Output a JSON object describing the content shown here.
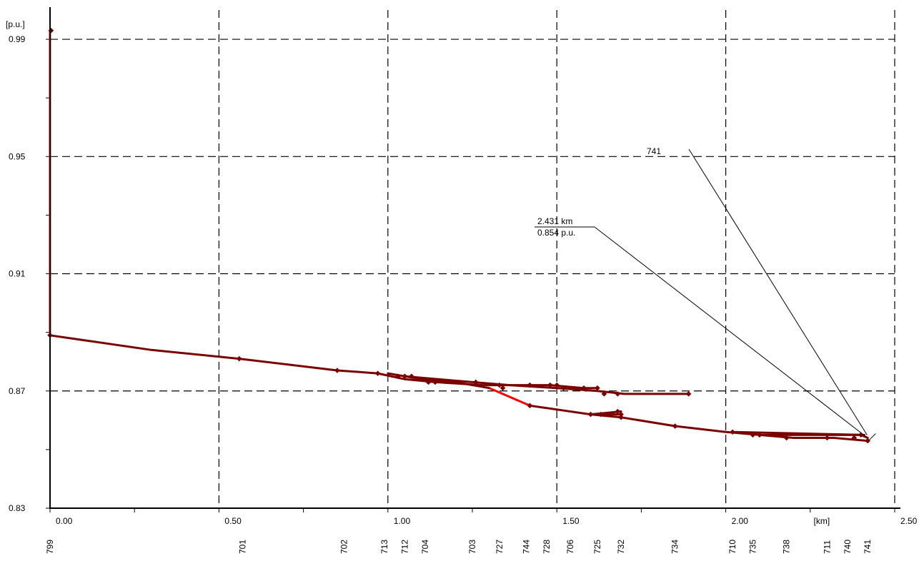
{
  "chart_data": {
    "type": "line",
    "y_unit_label": "[p.u.]",
    "x_unit_label": "[km]",
    "xlim": [
      0,
      2.5
    ],
    "ylim": [
      0.83,
      1.0
    ],
    "x_ticks": [
      "0.00",
      "0.50",
      "1.00",
      "1.50",
      "2.00",
      "2.50"
    ],
    "x_tick_values": [
      0,
      0.5,
      1.0,
      1.5,
      2.0,
      2.5
    ],
    "y_ticks": [
      "0.83",
      "0.87",
      "0.91",
      "0.95",
      "0.99"
    ],
    "y_tick_values": [
      0.83,
      0.87,
      0.91,
      0.95,
      0.99
    ],
    "grid": true,
    "colors": {
      "main": "#7a0000",
      "highlight": "#ff0000",
      "axis": "#000000"
    },
    "series": [
      {
        "color": "#ff0000",
        "points": [
          [
            0,
            0.993
          ],
          [
            0,
            0.889
          ]
        ]
      },
      {
        "color": "#ff0000",
        "points": [
          [
            1.3,
            0.871
          ],
          [
            1.42,
            0.865
          ]
        ]
      },
      {
        "color": "#7a0000",
        "points": [
          [
            0,
            0.889
          ],
          [
            0.3,
            0.884
          ],
          [
            0.56,
            0.881
          ],
          [
            0.85,
            0.877
          ],
          [
            0.97,
            0.876
          ],
          [
            1.05,
            0.874
          ],
          [
            1.14,
            0.873
          ],
          [
            1.28,
            0.872
          ],
          [
            1.48,
            0.872
          ],
          [
            1.58,
            0.871
          ],
          [
            1.62,
            0.871
          ]
        ]
      },
      {
        "color": "#7a0000",
        "points": [
          [
            1.05,
            0.875
          ],
          [
            1.25,
            0.873
          ],
          [
            1.36,
            0.872
          ],
          [
            1.5,
            0.871
          ],
          [
            1.62,
            0.87
          ],
          [
            1.7,
            0.869
          ],
          [
            1.89,
            0.869
          ]
        ]
      },
      {
        "color": "#7a0000",
        "points": [
          [
            1.0,
            0.876
          ],
          [
            1.1,
            0.874
          ],
          [
            1.2,
            0.873
          ],
          [
            1.3,
            0.871
          ]
        ]
      },
      {
        "color": "#7a0000",
        "points": [
          [
            1.42,
            0.865
          ],
          [
            1.6,
            0.862
          ],
          [
            1.69,
            0.861
          ],
          [
            1.85,
            0.858
          ],
          [
            2.0,
            0.856
          ],
          [
            2.1,
            0.855
          ],
          [
            2.4,
            0.855
          ],
          [
            2.42,
            0.854
          ]
        ]
      },
      {
        "color": "#7a0000",
        "points": [
          [
            1.6,
            0.862
          ],
          [
            1.69,
            0.863
          ]
        ]
      },
      {
        "color": "#7a0000",
        "points": [
          [
            1.62,
            0.862
          ],
          [
            1.69,
            0.862
          ]
        ]
      },
      {
        "color": "#7a0000",
        "points": [
          [
            2.1,
            0.855
          ],
          [
            2.2,
            0.854
          ],
          [
            2.32,
            0.854
          ],
          [
            2.42,
            0.853
          ]
        ]
      },
      {
        "color": "#7a0000",
        "points": [
          [
            2.02,
            0.856
          ],
          [
            2.41,
            0.855
          ]
        ]
      }
    ],
    "markers": [
      [
        0.003,
        0.993
      ],
      [
        0,
        0.889
      ],
      [
        0.56,
        0.881
      ],
      [
        0.85,
        0.877
      ],
      [
        0.97,
        0.876
      ],
      [
        1.03,
        0.875
      ],
      [
        1.05,
        0.875
      ],
      [
        1.07,
        0.875
      ],
      [
        1.14,
        0.873
      ],
      [
        1.12,
        0.873
      ],
      [
        1.26,
        0.873
      ],
      [
        1.33,
        0.872
      ],
      [
        1.42,
        0.872
      ],
      [
        1.48,
        0.872
      ],
      [
        1.5,
        0.872
      ],
      [
        1.52,
        0.871
      ],
      [
        1.58,
        0.871
      ],
      [
        1.62,
        0.871
      ],
      [
        1.64,
        0.869
      ],
      [
        1.68,
        0.869
      ],
      [
        1.89,
        0.869
      ],
      [
        1.42,
        0.865
      ],
      [
        1.6,
        0.862
      ],
      [
        1.63,
        0.862
      ],
      [
        1.68,
        0.863
      ],
      [
        1.69,
        0.862
      ],
      [
        1.69,
        0.861
      ],
      [
        1.85,
        0.858
      ],
      [
        2.02,
        0.856
      ],
      [
        2.08,
        0.855
      ],
      [
        2.1,
        0.855
      ],
      [
        2.18,
        0.854
      ],
      [
        2.3,
        0.854
      ],
      [
        2.38,
        0.854
      ],
      [
        2.42,
        0.853
      ],
      [
        2.4,
        0.855
      ],
      [
        1.34,
        0.871
      ]
    ],
    "node_labels": [
      {
        "label": "799",
        "x": 0.0
      },
      {
        "label": "701",
        "x": 0.57
      },
      {
        "label": "702",
        "x": 0.87
      },
      {
        "label": "713",
        "x": 0.99
      },
      {
        "label": "712",
        "x": 1.05
      },
      {
        "label": "704",
        "x": 1.11
      },
      {
        "label": "703",
        "x": 1.25
      },
      {
        "label": "727",
        "x": 1.33
      },
      {
        "label": "744",
        "x": 1.41
      },
      {
        "label": "728",
        "x": 1.47
      },
      {
        "label": "706",
        "x": 1.54
      },
      {
        "label": "725",
        "x": 1.62
      },
      {
        "label": "732",
        "x": 1.69
      },
      {
        "label": "734",
        "x": 1.85
      },
      {
        "label": "710",
        "x": 2.02
      },
      {
        "label": "735",
        "x": 2.08
      },
      {
        "label": "738",
        "x": 2.18
      },
      {
        "label": "711",
        "x": 2.3
      },
      {
        "label": "740",
        "x": 2.36
      },
      {
        "label": "741",
        "x": 2.42
      }
    ],
    "annotations": [
      {
        "lines": [
          "741"
        ]
      },
      {
        "lines": [
          "2.431 km",
          "0.854 p.u."
        ]
      }
    ]
  }
}
